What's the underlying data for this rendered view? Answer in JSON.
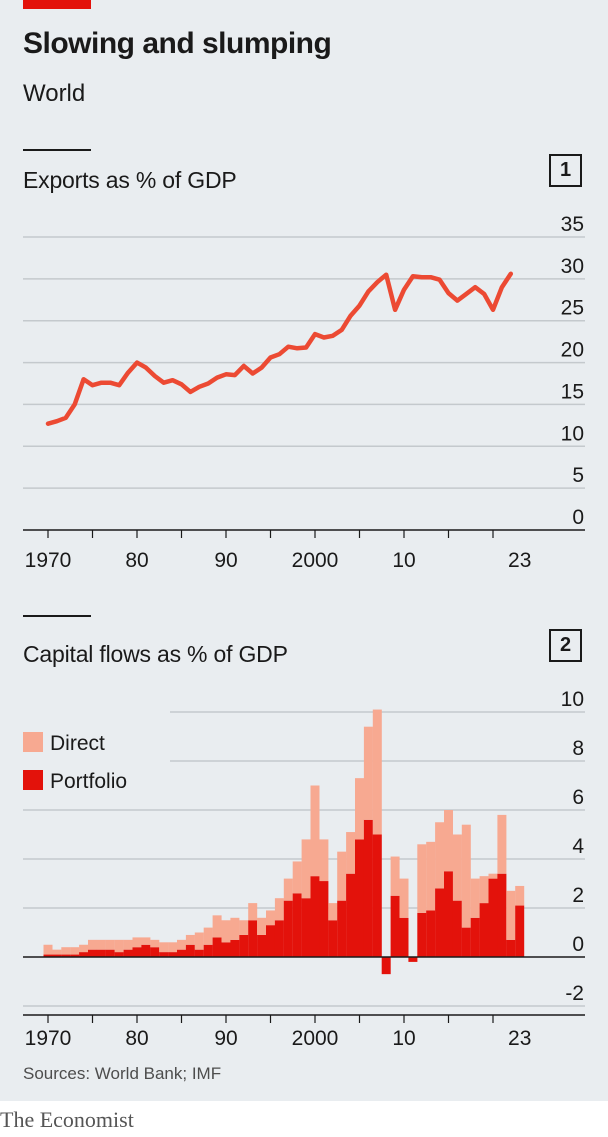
{
  "header": {
    "title": "Slowing and slumping",
    "subtitle": "World"
  },
  "colors": {
    "accent": "#e3120b",
    "line": "#ec4a33",
    "portfolio": "#e3120b",
    "direct": "#f7a991",
    "panel_bg": "#e9edf0",
    "grid": "#c4c9cd"
  },
  "chart_data": [
    {
      "type": "line",
      "title": "Exports as % of GDP",
      "number": "1",
      "xlabel": "",
      "ylabel": "",
      "x_ticks": [
        1970,
        1980,
        1990,
        2000,
        2010,
        2023
      ],
      "x_tick_labels": [
        "1970",
        "80",
        "90",
        "2000",
        "10",
        "23"
      ],
      "y_ticks": [
        0,
        5,
        10,
        15,
        20,
        25,
        30,
        35
      ],
      "ylim": [
        0,
        35
      ],
      "xlim": [
        1967,
        2028
      ],
      "grid": true,
      "series": [
        {
          "x": [
            1970,
            1971,
            1972,
            1973,
            1974,
            1975,
            1976,
            1977,
            1978,
            1979,
            1980,
            1981,
            1982,
            1983,
            1984,
            1985,
            1986,
            1987,
            1988,
            1989,
            1990,
            1991,
            1992,
            1993,
            1994,
            1995,
            1996,
            1997,
            1998,
            1999,
            2000,
            2001,
            2002,
            2003,
            2004,
            2005,
            2006,
            2007,
            2008,
            2009,
            2010,
            2011,
            2012,
            2013,
            2014,
            2015,
            2016,
            2017,
            2018,
            2019,
            2020,
            2021,
            2022
          ],
          "values": [
            12.7,
            13.0,
            13.4,
            15.0,
            18.0,
            17.3,
            17.6,
            17.6,
            17.3,
            18.8,
            20.0,
            19.4,
            18.4,
            17.6,
            17.9,
            17.4,
            16.5,
            17.1,
            17.5,
            18.2,
            18.6,
            18.5,
            19.6,
            18.7,
            19.4,
            20.6,
            21.0,
            21.9,
            21.7,
            21.8,
            23.4,
            23.0,
            23.2,
            23.9,
            25.6,
            26.8,
            28.5,
            29.6,
            30.5,
            26.3,
            28.7,
            30.3,
            30.2,
            30.2,
            29.9,
            28.3,
            27.4,
            28.2,
            29.0,
            28.2,
            26.3,
            29.0,
            30.6
          ]
        }
      ]
    },
    {
      "type": "bar",
      "stacked": true,
      "title": "Capital flows as % of GDP",
      "number": "2",
      "xlabel": "",
      "ylabel": "",
      "x_ticks": [
        1970,
        1980,
        1990,
        2000,
        2010,
        2023
      ],
      "x_tick_labels": [
        "1970",
        "80",
        "90",
        "2000",
        "10",
        "23"
      ],
      "y_ticks": [
        -2,
        0,
        2,
        4,
        6,
        8,
        10
      ],
      "ylim": [
        -2,
        10
      ],
      "xlim": [
        1967,
        2028
      ],
      "grid": true,
      "legend": {
        "placement": "top-left",
        "entries": [
          "Direct",
          "Portfolio"
        ]
      },
      "x": [
        1970,
        1971,
        1972,
        1973,
        1974,
        1975,
        1976,
        1977,
        1978,
        1979,
        1980,
        1981,
        1982,
        1983,
        1984,
        1985,
        1986,
        1987,
        1988,
        1989,
        1990,
        1991,
        1992,
        1993,
        1994,
        1995,
        1996,
        1997,
        1998,
        1999,
        2000,
        2001,
        2002,
        2003,
        2004,
        2005,
        2006,
        2007,
        2008,
        2009,
        2010,
        2011,
        2012,
        2013,
        2014,
        2015,
        2016,
        2017,
        2018,
        2019,
        2020,
        2021,
        2022,
        2023
      ],
      "series": [
        {
          "name": "Portfolio",
          "values": [
            0.1,
            0.1,
            0.1,
            0.1,
            0.2,
            0.3,
            0.3,
            0.3,
            0.2,
            0.3,
            0.4,
            0.5,
            0.4,
            0.2,
            0.2,
            0.3,
            0.5,
            0.3,
            0.5,
            0.8,
            0.6,
            0.7,
            0.9,
            1.5,
            0.9,
            1.3,
            1.5,
            2.3,
            2.6,
            2.4,
            3.3,
            3.1,
            1.5,
            2.3,
            3.4,
            4.8,
            5.6,
            5.0,
            -0.7,
            2.5,
            1.6,
            -0.2,
            1.8,
            1.9,
            2.8,
            3.5,
            2.3,
            1.2,
            1.6,
            2.2,
            3.2,
            3.4,
            0.7,
            2.1
          ]
        },
        {
          "name": "Direct",
          "values": [
            0.4,
            0.2,
            0.3,
            0.3,
            0.3,
            0.4,
            0.4,
            0.4,
            0.5,
            0.4,
            0.4,
            0.3,
            0.3,
            0.4,
            0.4,
            0.4,
            0.4,
            0.7,
            0.7,
            0.9,
            0.9,
            0.9,
            0.6,
            0.7,
            0.7,
            0.6,
            0.9,
            0.9,
            1.3,
            2.4,
            3.7,
            1.7,
            0.7,
            2.0,
            1.7,
            2.5,
            3.8,
            5.1,
            0.0,
            1.6,
            1.6,
            0.0,
            2.8,
            2.8,
            2.7,
            2.5,
            2.7,
            4.2,
            1.6,
            1.1,
            0.2,
            2.4,
            2.0,
            0.8
          ]
        }
      ]
    }
  ],
  "source": "Sources: World Bank; IMF",
  "footer": "The Economist"
}
